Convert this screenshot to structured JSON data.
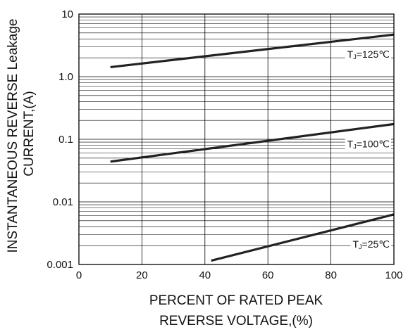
{
  "chart_data": {
    "type": "line",
    "title": "",
    "xlabel_lines": [
      "PERCENT OF RATED PEAK",
      "REVERSE VOLTAGE,(%)"
    ],
    "ylabel_lines": [
      "INSTANTANEOUS REVERSE Leakage",
      "CURRENT,(A)"
    ],
    "xlim": [
      0,
      100
    ],
    "ylim": [
      0.001,
      10
    ],
    "y_scale": "log",
    "grid": true,
    "x_ticks": [
      {
        "value": 0,
        "label": "0"
      },
      {
        "value": 20,
        "label": "20"
      },
      {
        "value": 40,
        "label": "40"
      },
      {
        "value": 60,
        "label": "60"
      },
      {
        "value": 80,
        "label": "80"
      },
      {
        "value": 100,
        "label": "100"
      }
    ],
    "y_ticks": [
      {
        "value": 10,
        "label": "10"
      },
      {
        "value": 1,
        "label": "1.0"
      },
      {
        "value": 0.1,
        "label": "0.1"
      },
      {
        "value": 0.01,
        "label": "0.01"
      },
      {
        "value": 0.001,
        "label": "0.001"
      }
    ],
    "series": [
      {
        "label": "T",
        "subscript": "J",
        "suffix": "=125℃",
        "x": [
          10,
          100
        ],
        "y": [
          1.42,
          4.7
        ]
      },
      {
        "label": "T",
        "subscript": "J",
        "suffix": "=100℃",
        "x": [
          10,
          100
        ],
        "y": [
          0.044,
          0.175
        ]
      },
      {
        "label": "T",
        "subscript": "J",
        "suffix": "=25℃",
        "x": [
          42,
          100
        ],
        "y": [
          0.00115,
          0.0063
        ]
      }
    ]
  }
}
